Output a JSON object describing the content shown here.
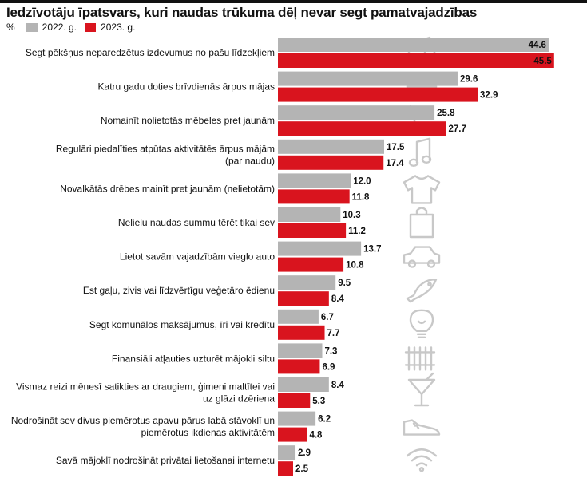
{
  "title": "Iedzīvotāju īpatsvars, kuri naudas trūkuma dēļ nevar segt pamatvajadzības",
  "legend": {
    "unit": "%",
    "y2022": "2022. g.",
    "y2023": "2023. g."
  },
  "colors": {
    "y2022": "#b4b4b4",
    "y2023": "#d9141e"
  },
  "chart_data": {
    "type": "bar",
    "orientation": "horizontal",
    "title": "Iedzīvotāju īpatsvars, kuri naudas trūkuma dēļ nevar segt pamatvajadzības",
    "ylabel": "%",
    "categories": [
      [
        "Segt pēkšņus neparedzētus izdevumus no pašu līdzekļiem"
      ],
      [
        "Katru gadu doties brīvdienās ārpus mājas"
      ],
      [
        "Nomainīt nolietotās mēbeles pret jaunām"
      ],
      [
        "Regulāri piedalīties atpūtas aktivitātēs ārpus mājām",
        "(par naudu)"
      ],
      [
        "Novalkātās drēbes mainīt pret jaunām (nelietotām)"
      ],
      [
        "Nelielu naudas summu tērēt tikai sev"
      ],
      [
        "Lietot savām vajadzībām vieglo auto"
      ],
      [
        "Ēst gaļu, zivis vai līdzvērtīgu veģetāro ēdienu"
      ],
      [
        "Segt komunālos maksājumus, īri vai kredītu"
      ],
      [
        "Finansiāli atļauties uzturēt mājokli siltu"
      ],
      [
        "Vismaz reizi mēnesī satikties ar draugiem, ģimeni maltītei vai",
        "uz glāzi dzēriena"
      ],
      [
        "Nodrošināt sev divus piemērotus apavu pārus labā stāvoklī un",
        "piemērotus ikdienas aktivitātēm"
      ],
      [
        "Savā mājoklī nodrošināt privātai lietošanai internetu"
      ]
    ],
    "series": [
      {
        "name": "2022. g.",
        "values": [
          44.6,
          29.6,
          25.8,
          17.5,
          12.0,
          10.3,
          13.7,
          9.5,
          6.7,
          7.3,
          8.4,
          6.2,
          2.9
        ]
      },
      {
        "name": "2023. g.",
        "values": [
          45.5,
          32.9,
          27.7,
          17.4,
          11.8,
          11.2,
          10.8,
          8.4,
          7.7,
          6.9,
          5.3,
          4.8,
          2.5
        ]
      }
    ],
    "value_labels": [
      [
        "44.6",
        "45.5"
      ],
      [
        "29.6",
        "32.9"
      ],
      [
        "25.8",
        "27.7"
      ],
      [
        "17.5",
        "17.4"
      ],
      [
        "12.0",
        "11.8"
      ],
      [
        "10.3",
        "11.2"
      ],
      [
        "13.7",
        "10.8"
      ],
      [
        "9.5",
        "8.4"
      ],
      [
        "6.7",
        "7.7"
      ],
      [
        "7.3",
        "6.9"
      ],
      [
        "8.4",
        "5.3"
      ],
      [
        "6.2",
        "4.8"
      ],
      [
        "2.9",
        "2.5"
      ]
    ],
    "icons": [
      "wallet-icon",
      "suitcase-icon",
      "rocking-chair-icon",
      "music-note-icon",
      "shirt-icon",
      "shopping-bag-icon",
      "car-icon",
      "fish-icon",
      "light-bulb-icon",
      "radiator-icon",
      "cocktail-glass-icon",
      "sneaker-icon",
      "wifi-icon"
    ],
    "legend_position": "top-left",
    "grid": false
  }
}
